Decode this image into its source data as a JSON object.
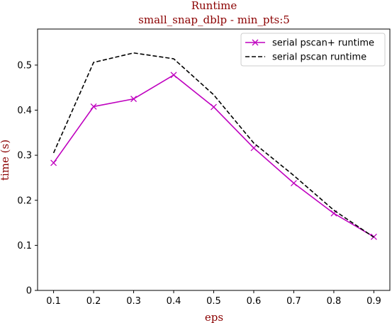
{
  "chart_data": {
    "type": "line",
    "title": "Runtime",
    "subtitle": "small_snap_dblp - min_pts:5",
    "xlabel": "eps",
    "ylabel": "time (s)",
    "x": [
      0.1,
      0.2,
      0.3,
      0.4,
      0.5,
      0.6,
      0.7,
      0.8,
      0.9
    ],
    "xlim": [
      0.06,
      0.94
    ],
    "ylim": [
      0,
      0.58
    ],
    "xticks": [
      "0.1",
      "0.2",
      "0.3",
      "0.4",
      "0.5",
      "0.6",
      "0.7",
      "0.8",
      "0.9"
    ],
    "yticks": [
      "0",
      "0.1",
      "0.2",
      "0.3",
      "0.4",
      "0.5"
    ],
    "grid": false,
    "legend_position": "top-right",
    "series": [
      {
        "name": "serial pscan+ runtime",
        "color": "#bf00bf",
        "style": "solid",
        "marker": "x",
        "values": [
          0.283,
          0.408,
          0.425,
          0.478,
          0.407,
          0.316,
          0.238,
          0.171,
          0.119
        ]
      },
      {
        "name": "serial pscan runtime",
        "color": "#000000",
        "style": "dashed",
        "marker": "none",
        "values": [
          0.305,
          0.506,
          0.527,
          0.514,
          0.434,
          0.327,
          0.255,
          0.178,
          0.118
        ]
      }
    ]
  }
}
